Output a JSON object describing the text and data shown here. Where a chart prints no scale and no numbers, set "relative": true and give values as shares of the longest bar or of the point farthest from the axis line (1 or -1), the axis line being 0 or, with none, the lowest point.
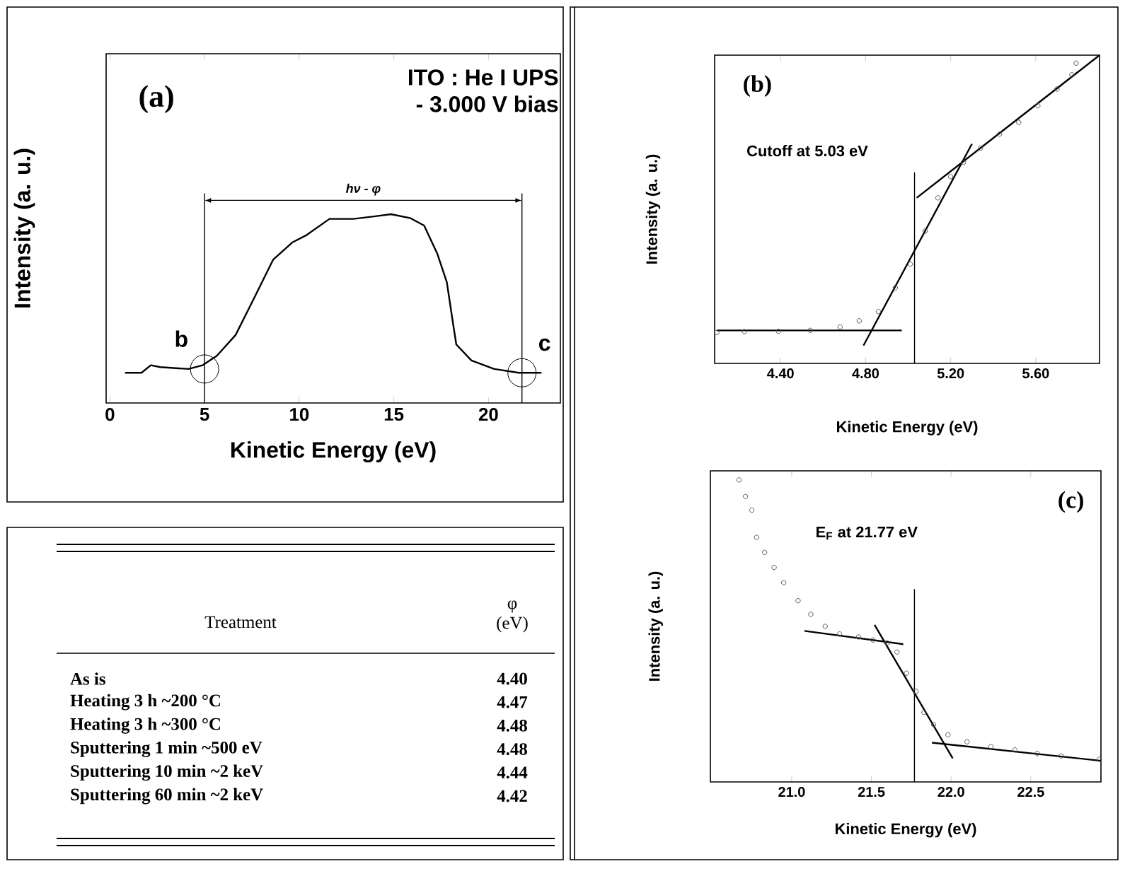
{
  "chart_data": [
    {
      "type": "line",
      "xlabel": "Kinetic Energy (eV)",
      "ylabel": "Intensity (a. u.)",
      "relative": true,
      "xlim": [
        -0.2,
        23.8
      ],
      "xticks": [
        0,
        5,
        10,
        15,
        20
      ],
      "annotations": [
        "(a)",
        "ITO : He I UPS",
        "- 3.000 V bias",
        "hν - φ",
        {
          "text": "b",
          "x": 5,
          "y": 0.18
        },
        {
          "text": "c",
          "x": 21.77,
          "y": 0.16
        }
      ],
      "ref_lines": [
        {
          "axis": "x",
          "value": 5
        },
        {
          "axis": "x",
          "value": 21.77
        }
      ],
      "series": [
        {
          "color": "#000000",
          "x": [
            0.8,
            1.67,
            2.16,
            2.66,
            4.15,
            4.9,
            5.65,
            6.64,
            7.64,
            8.63,
            9.63,
            10.4,
            11.6,
            12.86,
            14.1,
            14.85,
            15.85,
            16.6,
            17.3,
            17.8,
            18.1,
            18.3,
            19.1,
            20.3,
            21.6,
            22.8
          ],
          "values": [
            0.16,
            0.16,
            0.2,
            0.19,
            0.18,
            0.2,
            0.25,
            0.36,
            0.56,
            0.76,
            0.85,
            0.89,
            0.975,
            0.975,
            0.99,
            1.0,
            0.98,
            0.94,
            0.79,
            0.64,
            0.44,
            0.31,
            0.225,
            0.18,
            0.16,
            0.16
          ]
        }
      ]
    },
    {
      "type": "scatter",
      "xlabel": "Kinetic Energy (eV)",
      "ylabel": "Intensity (a. u.)",
      "relative": true,
      "xlim": [
        4.09,
        5.9
      ],
      "xticks": [
        {
          "value": 4.4,
          "label": "4.40"
        },
        {
          "value": 4.8,
          "label": "4.80"
        },
        {
          "value": 5.2,
          "label": "5.20"
        },
        {
          "value": 5.6,
          "label": "5.60"
        }
      ],
      "annotations": [
        "(b)",
        "Cutoff at 5.03 eV"
      ],
      "ref_lines": [
        {
          "axis": "x",
          "value": 5.03
        }
      ],
      "series": [
        {
          "type": "scatter",
          "marker": "circle",
          "color": "#555555",
          "x": [
            4.1,
            4.23,
            4.39,
            4.54,
            4.68,
            4.77,
            4.86,
            4.94,
            5.01,
            5.08,
            5.14,
            5.2,
            5.26,
            5.34,
            5.43,
            5.52,
            5.61,
            5.7,
            5.77,
            5.79
          ],
          "values": [
            0.1,
            0.103,
            0.104,
            0.107,
            0.118,
            0.138,
            0.168,
            0.245,
            0.322,
            0.429,
            0.537,
            0.606,
            0.652,
            0.698,
            0.744,
            0.782,
            0.836,
            0.89,
            0.936,
            0.974
          ]
        },
        {
          "type": "line",
          "color": "#000000",
          "x": [
            4.1,
            4.97
          ],
          "values": [
            0.107,
            0.107
          ]
        },
        {
          "type": "line",
          "color": "#000000",
          "x": [
            4.79,
            5.3
          ],
          "values": [
            0.058,
            0.712
          ]
        },
        {
          "type": "line",
          "color": "#000000",
          "x": [
            5.04,
            5.9
          ],
          "values": [
            0.537,
            1.0
          ]
        }
      ]
    },
    {
      "type": "scatter",
      "xlabel": "Kinetic Energy (eV)",
      "ylabel": "Intensity (a. u.)",
      "relative": true,
      "xlim": [
        20.49,
        22.94
      ],
      "xticks": [
        {
          "value": 21.0,
          "label": "21.0"
        },
        {
          "value": 21.5,
          "label": "21.5"
        },
        {
          "value": 22.0,
          "label": "22.0"
        },
        {
          "value": 22.5,
          "label": "22.5"
        }
      ],
      "annotations": [
        "(c)",
        "E$_{F}$ at 21.77 eV"
      ],
      "ref_lines": [
        {
          "axis": "x",
          "value": 21.77
        }
      ],
      "series": [
        {
          "type": "scatter",
          "marker": "circle",
          "color": "#555555",
          "x": [
            20.67,
            20.71,
            20.75,
            20.78,
            20.83,
            20.89,
            20.95,
            21.04,
            21.12,
            21.21,
            21.3,
            21.42,
            21.51,
            21.6,
            21.66,
            21.72,
            21.78,
            21.83,
            21.89,
            21.98,
            22.1,
            22.25,
            22.4,
            22.54,
            22.69,
            22.93
          ],
          "values": [
            1.0,
            0.945,
            0.9,
            0.81,
            0.76,
            0.71,
            0.66,
            0.6,
            0.555,
            0.515,
            0.49,
            0.48,
            0.47,
            0.46,
            0.43,
            0.36,
            0.3,
            0.23,
            0.19,
            0.156,
            0.133,
            0.117,
            0.106,
            0.094,
            0.086,
            0.075
          ]
        },
        {
          "type": "line",
          "color": "#000000",
          "x": [
            21.08,
            21.7
          ],
          "values": [
            0.5,
            0.456
          ]
        },
        {
          "type": "line",
          "color": "#000000",
          "x": [
            21.52,
            22.01
          ],
          "values": [
            0.52,
            0.078
          ]
        },
        {
          "type": "line",
          "color": "#000000",
          "x": [
            21.88,
            22.94
          ],
          "values": [
            0.13,
            0.07
          ]
        }
      ]
    },
    {
      "type": "other",
      "xlabel": "Treatment",
      "ylabel": "φ (eV)",
      "value_labels": [
        "4.40",
        "4.47",
        "4.48",
        "4.48",
        "4.44",
        "4.42"
      ],
      "categories": [
        "As is",
        "Heating 3 h ~200 °C",
        "Heating 3 h ~300 °C",
        "Sputtering 1 min ~500 eV",
        "Sputtering 10 min ~2 keV",
        "Sputtering 60 min ~2 keV"
      ]
    }
  ]
}
